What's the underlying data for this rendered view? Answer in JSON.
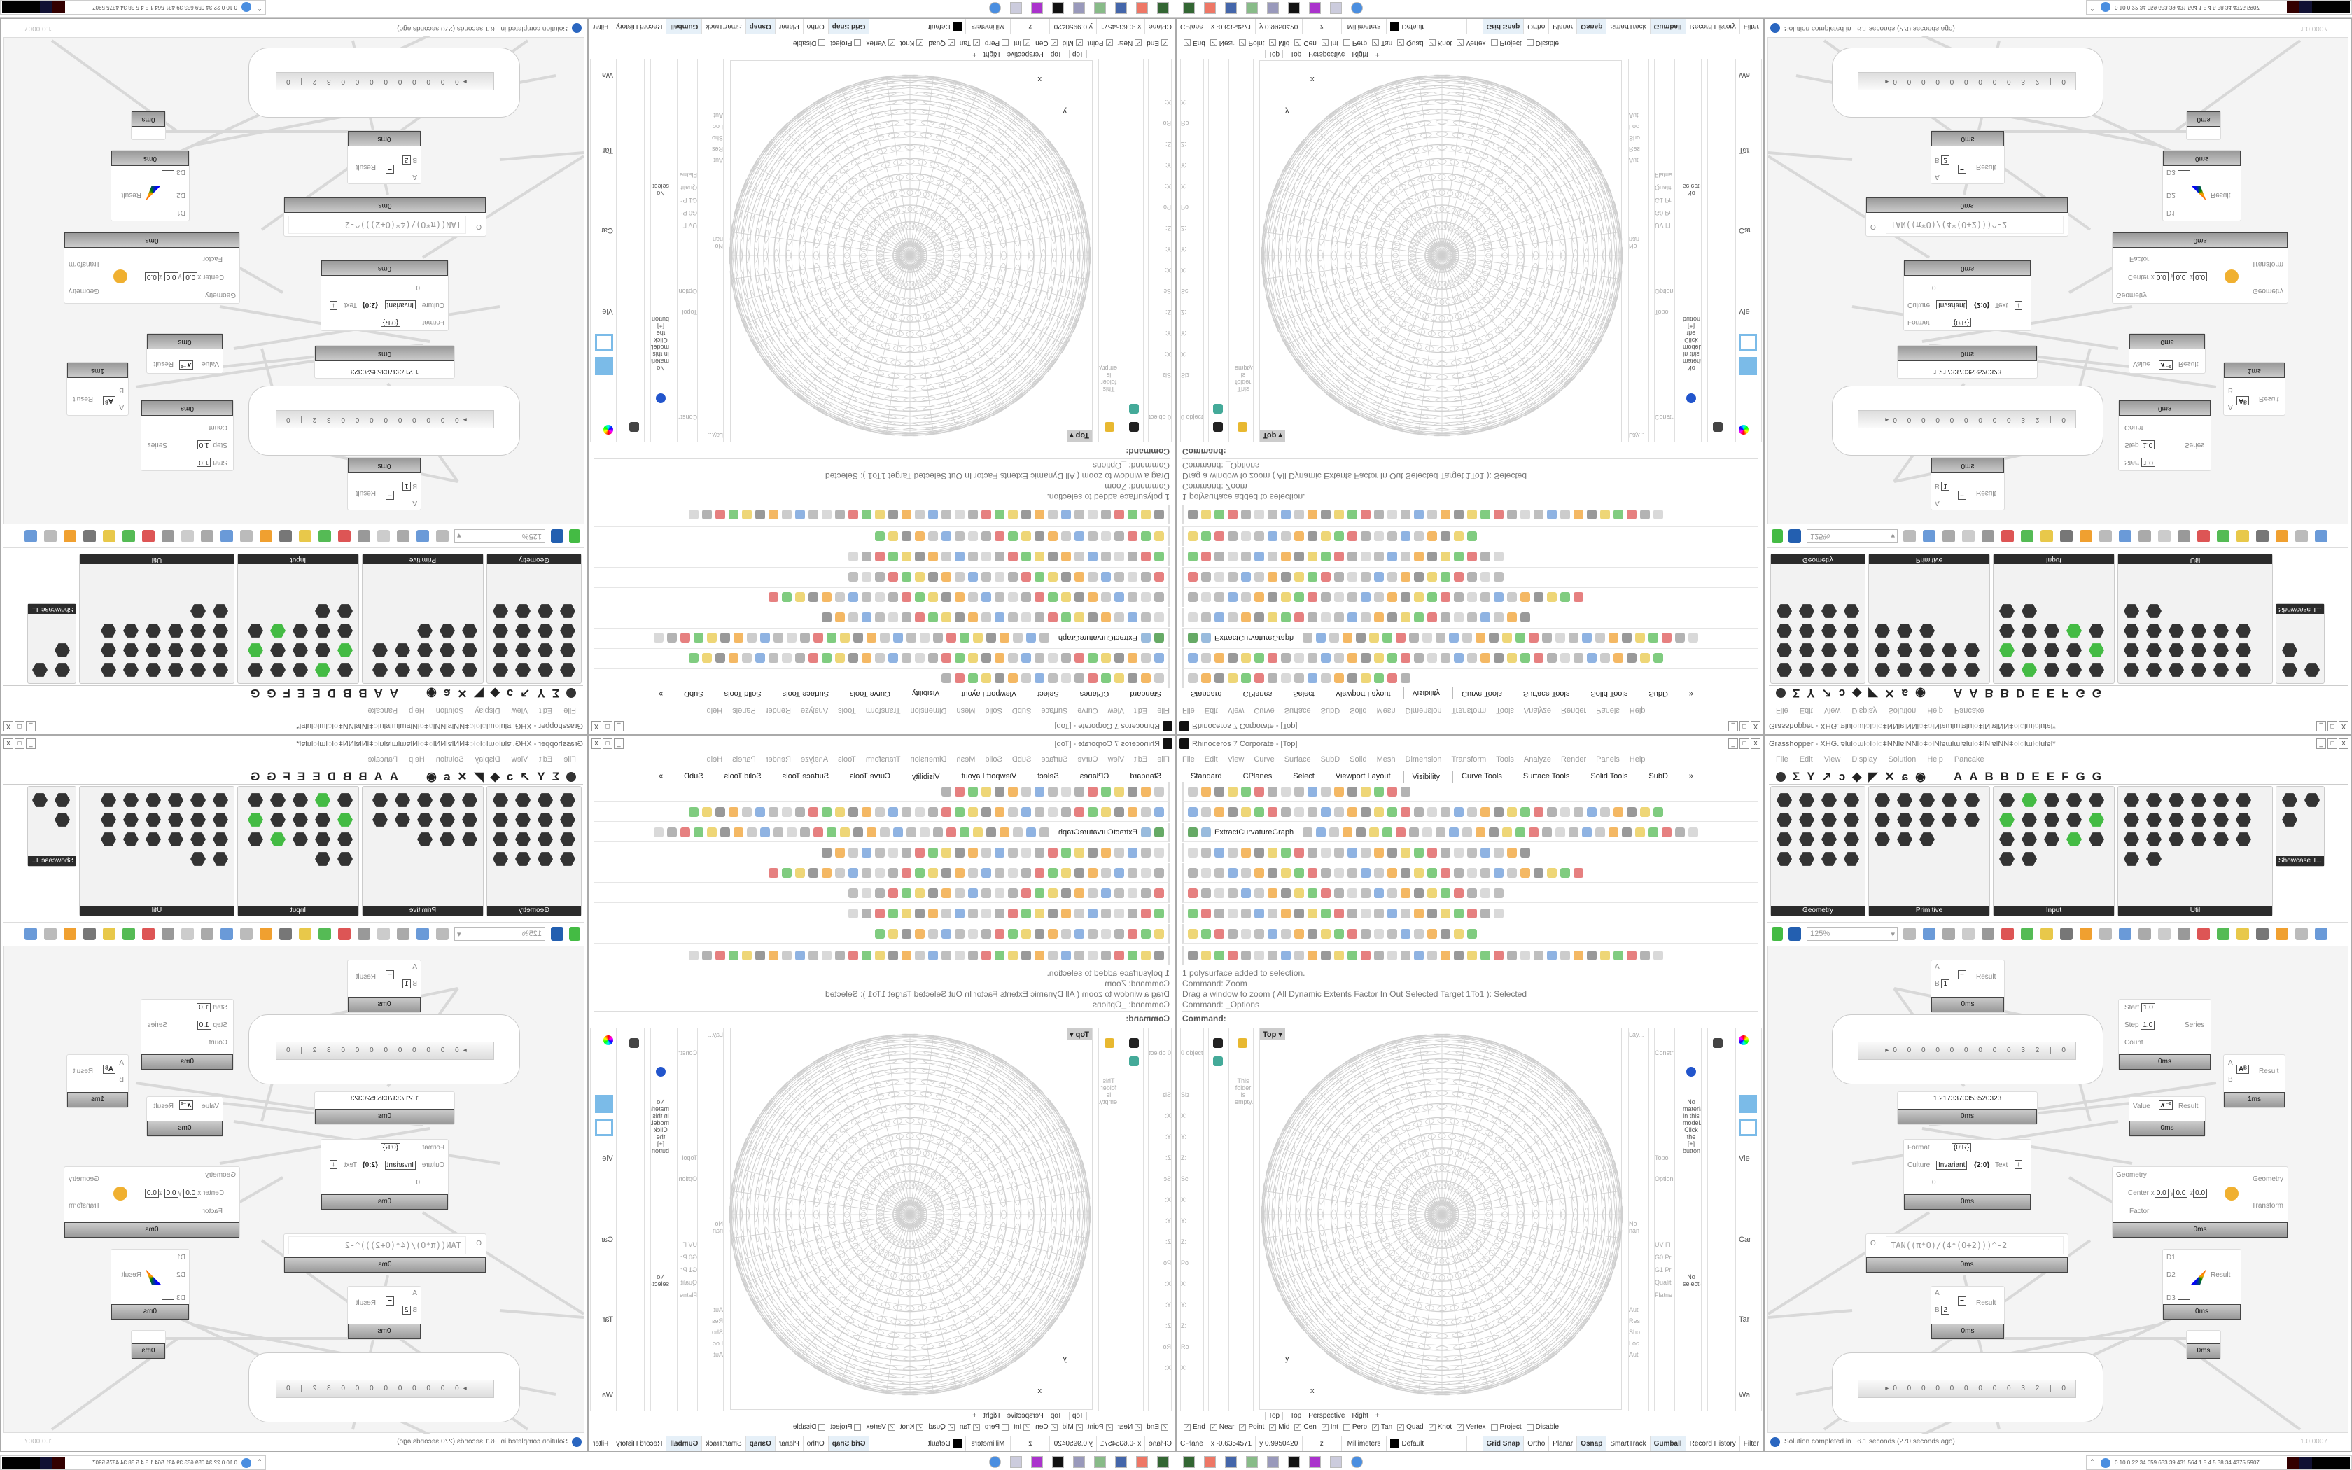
{
  "layout_note_mirroring": "four-way mirrored",
  "rhino": {
    "title": "Rhinoceros 7 Corporate - [Top]",
    "menu": [
      "File",
      "Edit",
      "View",
      "Curve",
      "Surface",
      "SubD",
      "Solid",
      "Mesh",
      "Dimension",
      "Transform",
      "Tools",
      "Analyze",
      "Render",
      "Panels",
      "Help"
    ],
    "toolbar_tabs": [
      "Standard",
      "CPlanes",
      "Select",
      "Viewport Layout",
      "Visibility",
      "Curve Tools",
      "Surface Tools",
      "Solid Tools",
      "SubD",
      "»"
    ],
    "active_tab": "Visibility",
    "extract_label": "ExtractCurvatureGraph",
    "command_history": [
      "1 polysurface added to selection.",
      "Command: Zoom",
      "Drag a window to zoom ( All  Dynamic  Extents  Factor  In  Out  Selected  Target  1To1 ): Selected",
      "Command: _Options"
    ],
    "command_prompt": "Command:",
    "viewport_label": "Top",
    "viewport_tabs": [
      "Top",
      "Top",
      "Perspective",
      "Right",
      "+"
    ],
    "axis_x": "x",
    "axis_y": "y",
    "panels": {
      "objects": "0 object",
      "folder_empty": "This folder is empty.",
      "layers": "Lay...",
      "materials": "No material in this model. Click the [+] button",
      "no_selection": "No selection",
      "no_named": "No nan",
      "constr": "Constra",
      "topo": "Topol",
      "options": "Options",
      "view": "Vie",
      "camera": "Car",
      "target": "Tar",
      "wall": "Wa",
      "props": [
        "Siz",
        "X:",
        "Y:",
        "Z:",
        "Sc",
        "X:",
        "Y:",
        "Z:",
        "Po",
        "X:",
        "Y:",
        "Z:",
        "Ro",
        "X:"
      ],
      "checks": [
        "Aut",
        "Res",
        "Sho",
        "Loc",
        "Aut"
      ],
      "uv": [
        "UV Fl",
        "G0 Pr",
        "G1 Pr",
        "Qualit",
        "Flatne"
      ]
    },
    "osnaps": [
      {
        "label": "End",
        "checked": true
      },
      {
        "label": "Near",
        "checked": true
      },
      {
        "label": "Point",
        "checked": true
      },
      {
        "label": "Mid",
        "checked": true
      },
      {
        "label": "Cen",
        "checked": true
      },
      {
        "label": "Int",
        "checked": true
      },
      {
        "label": "Perp",
        "checked": false
      },
      {
        "label": "Tan",
        "checked": true
      },
      {
        "label": "Quad",
        "checked": true
      },
      {
        "label": "Knot",
        "checked": true
      },
      {
        "label": "Vertex",
        "checked": true
      },
      {
        "label": "Project",
        "checked": false
      },
      {
        "label": "Disable",
        "checked": false
      }
    ],
    "status": {
      "cplane": "CPlane",
      "x": "x -0.6354571",
      "y": "y 0.9950420",
      "z": "z",
      "units": "Millimeters",
      "layer": "Default",
      "grid_snap": "Grid Snap",
      "ortho": "Ortho",
      "planar": "Planar",
      "osnap": "Osnap",
      "smarttrack": "SmartTrack",
      "gumball": "Gumball",
      "record_history": "Record History",
      "filter": "Filter"
    }
  },
  "grasshopper": {
    "title": "Grasshopper - XHG.ƖɐƖuƖ◌ɯƖ◌Ɩ◌Ɩ◌ǂNNƖɐƖNNƖ◌ǂ◌ƖNƖɐɯƖɯƖɐƖuƖ◌ǂƖNƖɐƖNNǂ◌Ɩ◌ƖɯƖ◌ƖuƖɐƖ*",
    "menu": [
      "File",
      "Edit",
      "View",
      "Display",
      "Solution",
      "Help",
      "Pancake"
    ],
    "tab_letters": [
      "A",
      "A",
      "B",
      "B",
      "D",
      "E",
      "E",
      "F",
      "G",
      "G"
    ],
    "panels": [
      "Geometry",
      "Primitive",
      "Input",
      "Util",
      "Showcase T..."
    ],
    "zoom": "125%",
    "components": {
      "sub1": {
        "a": "A",
        "b": "B",
        "b_val": "1",
        "out": "Result",
        "time": "0ms"
      },
      "sub2": {
        "a": "A",
        "b": "B",
        "b_val": "2",
        "out": "Result",
        "time": "0ms"
      },
      "series": {
        "start": "Start",
        "start_val": "1.0",
        "step": "Step",
        "step_val": "1.0",
        "count": "Count",
        "out": "Series",
        "time": "0ms"
      },
      "power": {
        "a": "A",
        "b": "B",
        "out": "Result",
        "time": "1ms"
      },
      "panel_value": "1.2173370353520323",
      "panel_time": "0ms",
      "reciprocal": {
        "in": "Value",
        "out": "Result",
        "time": "0ms"
      },
      "format": {
        "format": "Format",
        "format_val": "{0:R}",
        "culture": "Culture",
        "culture_val": "Invariant",
        "extra": "0",
        "out": "Text",
        "icon": "{2;0}",
        "time": "0ms"
      },
      "scale": {
        "geometry": "Geometry",
        "center": "Center",
        "x": "0.0",
        "y": "0.0",
        "z": "0.0",
        "factor": "Factor",
        "out_geometry": "Geometry",
        "out_transform": "Transform",
        "time": "0ms"
      },
      "expression": {
        "in": "O",
        "expr": "TAN((π*O)/(4*(O+2)))^-2",
        "time": "0ms"
      },
      "vector": {
        "d1": "D1",
        "d2": "D2",
        "d3": "D3",
        "out": "Result",
        "time": "0ms"
      },
      "small_time": "0ms",
      "slider_digits": "▸0 0 0 0 0 0 0 0 0 3 2 | 0"
    },
    "status": "Solution completed in ~6.1 seconds (270 seconds ago)",
    "version": "1.0.0007",
    "tray_stats": "0.10 0.22 34 659 633 39 431 564 1.5 4.5 38 34 4375 5907"
  }
}
